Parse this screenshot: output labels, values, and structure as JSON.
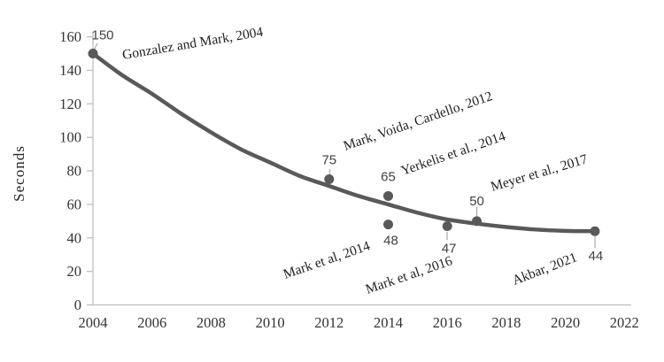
{
  "chart_data": {
    "type": "scatter",
    "title": "",
    "xlabel": "",
    "ylabel": "Seconds",
    "xlim": [
      2004,
      2022
    ],
    "ylim": [
      0,
      160
    ],
    "grid": false,
    "legend": "none",
    "x_ticks": [
      2004,
      2006,
      2008,
      2010,
      2012,
      2014,
      2016,
      2018,
      2020,
      2022
    ],
    "y_ticks": [
      0,
      20,
      40,
      60,
      80,
      100,
      120,
      140,
      160
    ],
    "points": [
      {
        "x": 2004,
        "y": 150,
        "value_label": "150",
        "annotation": "Gonzalez and Mark, 2004"
      },
      {
        "x": 2012,
        "y": 75,
        "value_label": "75",
        "annotation": "Mark, Voida, Cardello, 2012"
      },
      {
        "x": 2014,
        "y": 65,
        "value_label": "65",
        "annotation": "Yerkelis et al., 2014"
      },
      {
        "x": 2014,
        "y": 48,
        "value_label": "48",
        "annotation": "Mark et al, 2014"
      },
      {
        "x": 2016,
        "y": 47,
        "value_label": "47",
        "annotation": "Mark et al, 2016"
      },
      {
        "x": 2017,
        "y": 50,
        "value_label": "50",
        "annotation": "Meyer et al., 2017"
      },
      {
        "x": 2021,
        "y": 44,
        "value_label": "44",
        "annotation": "Akbar, 2021"
      }
    ],
    "trend_curve": {
      "description": "smooth decreasing power-style fitted trend line from (2004,150) to (2021,44)",
      "points": [
        [
          2004,
          150
        ],
        [
          2005,
          137
        ],
        [
          2006,
          126
        ],
        [
          2007,
          114
        ],
        [
          2008,
          103
        ],
        [
          2009,
          93
        ],
        [
          2010,
          85
        ],
        [
          2011,
          77
        ],
        [
          2012,
          71
        ],
        [
          2013,
          65
        ],
        [
          2014,
          60
        ],
        [
          2015,
          55
        ],
        [
          2016,
          51
        ],
        [
          2017,
          48.5
        ],
        [
          2018,
          46.5
        ],
        [
          2019,
          45
        ],
        [
          2020,
          44.2
        ],
        [
          2021,
          44
        ]
      ]
    },
    "colors": {
      "curve": "#595959",
      "point": "#595959",
      "axis_line": "#bfbfbf",
      "tick_label": "#333333",
      "value_label": "#404040",
      "annotation": "#1f1f1f",
      "leader_line": "#aaaaaa",
      "background": "#ffffff"
    }
  }
}
